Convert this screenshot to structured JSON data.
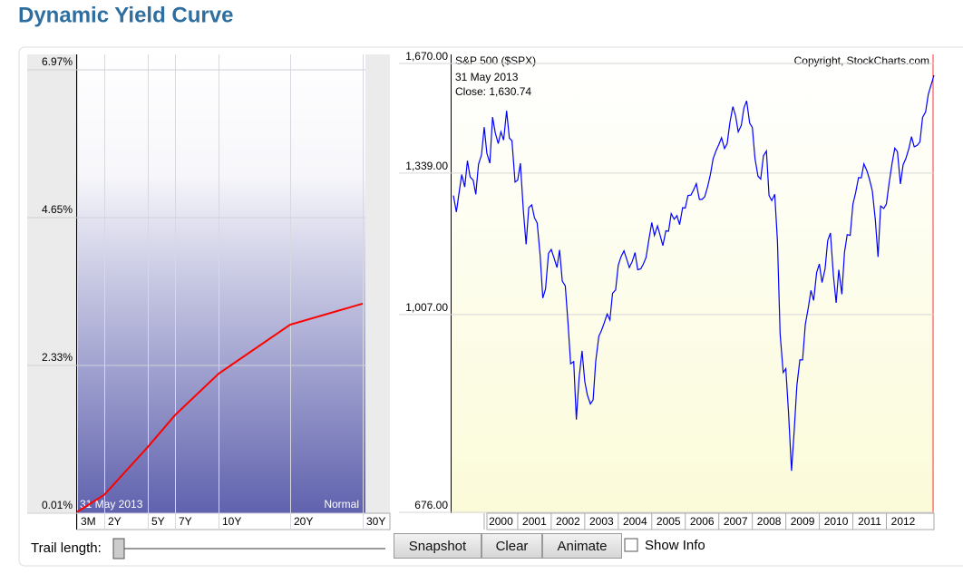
{
  "header": {
    "title": "Dynamic Yield Curve"
  },
  "chart_data": [
    {
      "type": "line",
      "categories": [
        "3M",
        "2Y",
        "5Y",
        "7Y",
        "10Y",
        "20Y",
        "30Y"
      ],
      "values": [
        0.03,
        0.3,
        1.05,
        1.55,
        2.2,
        2.97,
        3.3
      ],
      "color": "#ff0000",
      "ylim": [
        0.01,
        6.97
      ],
      "yticks": [
        {
          "value": 0.01,
          "label": "0.01%"
        },
        {
          "value": 2.33,
          "label": "2.33%"
        },
        {
          "value": 4.65,
          "label": "4.65%"
        },
        {
          "value": 6.97,
          "label": "6.97%"
        }
      ],
      "annotations": [
        "31 May 2013",
        "Normal"
      ],
      "grid": true
    },
    {
      "type": "line",
      "title": "S&P 500 ($SPX)",
      "subtitle": "31 May 2013",
      "annotations": [
        "Close: 1,630.74",
        "Copyright, StockCharts.com"
      ],
      "x": [
        1999.08,
        1999.17,
        1999.25,
        1999.33,
        1999.42,
        1999.5,
        1999.58,
        1999.67,
        1999.75,
        1999.83,
        1999.92,
        2000,
        2000.08,
        2000.17,
        2000.25,
        2000.33,
        2000.42,
        2000.5,
        2000.58,
        2000.67,
        2000.75,
        2000.83,
        2000.92,
        2001,
        2001.08,
        2001.17,
        2001.25,
        2001.33,
        2001.42,
        2001.5,
        2001.58,
        2001.67,
        2001.75,
        2001.83,
        2001.92,
        2002,
        2002.08,
        2002.17,
        2002.25,
        2002.33,
        2002.42,
        2002.5,
        2002.58,
        2002.67,
        2002.75,
        2002.83,
        2002.92,
        2003,
        2003.08,
        2003.17,
        2003.25,
        2003.33,
        2003.42,
        2003.5,
        2003.58,
        2003.67,
        2003.75,
        2003.83,
        2003.92,
        2004,
        2004.08,
        2004.17,
        2004.25,
        2004.33,
        2004.42,
        2004.5,
        2004.58,
        2004.67,
        2004.75,
        2004.83,
        2004.92,
        2005,
        2005.08,
        2005.17,
        2005.25,
        2005.33,
        2005.42,
        2005.5,
        2005.58,
        2005.67,
        2005.75,
        2005.83,
        2005.92,
        2006,
        2006.08,
        2006.17,
        2006.25,
        2006.33,
        2006.42,
        2006.5,
        2006.58,
        2006.67,
        2006.75,
        2006.83,
        2006.92,
        2007,
        2007.08,
        2007.17,
        2007.25,
        2007.33,
        2007.42,
        2007.5,
        2007.58,
        2007.67,
        2007.75,
        2007.83,
        2007.92,
        2008,
        2008.08,
        2008.17,
        2008.25,
        2008.33,
        2008.42,
        2008.5,
        2008.58,
        2008.67,
        2008.75,
        2008.83,
        2008.92,
        2009,
        2009.08,
        2009.17,
        2009.25,
        2009.33,
        2009.42,
        2009.5,
        2009.58,
        2009.67,
        2009.75,
        2009.83,
        2009.92,
        2010,
        2010.08,
        2010.17,
        2010.25,
        2010.33,
        2010.42,
        2010.5,
        2010.58,
        2010.67,
        2010.75,
        2010.83,
        2010.92,
        2011,
        2011.08,
        2011.17,
        2011.25,
        2011.33,
        2011.42,
        2011.5,
        2011.58,
        2011.67,
        2011.75,
        2011.83,
        2011.92,
        2012,
        2012.08,
        2012.17,
        2012.25,
        2012.33,
        2012.42,
        2012.5,
        2012.58,
        2012.67,
        2012.75,
        2012.83,
        2012.92,
        2013,
        2013.08,
        2013.17,
        2013.25,
        2013.33,
        2013.42
      ],
      "values": [
        1280,
        1238,
        1286,
        1335,
        1302,
        1373,
        1329,
        1320,
        1283,
        1363,
        1389,
        1469,
        1394,
        1366,
        1499,
        1452,
        1421,
        1455,
        1431,
        1518,
        1437,
        1429,
        1315,
        1320,
        1366,
        1240,
        1160,
        1249,
        1256,
        1224,
        1211,
        1134,
        1041,
        1060,
        1139,
        1148,
        1130,
        1107,
        1147,
        1077,
        1067,
        990,
        912,
        916,
        815,
        886,
        936,
        880,
        856,
        841,
        848,
        917,
        964,
        975,
        990,
        1008,
        996,
        1051,
        1058,
        1112,
        1131,
        1145,
        1126,
        1107,
        1121,
        1141,
        1102,
        1104,
        1115,
        1130,
        1174,
        1212,
        1181,
        1204,
        1181,
        1157,
        1192,
        1191,
        1234,
        1220,
        1229,
        1207,
        1249,
        1248,
        1280,
        1281,
        1295,
        1311,
        1270,
        1270,
        1277,
        1304,
        1336,
        1378,
        1401,
        1418,
        1438,
        1407,
        1421,
        1482,
        1531,
        1503,
        1455,
        1474,
        1527,
        1549,
        1481,
        1468,
        1379,
        1331,
        1323,
        1386,
        1400,
        1280,
        1267,
        1283,
        1166,
        969,
        896,
        903,
        826,
        735,
        798,
        873,
        919,
        919,
        987,
        1021,
        1057,
        1036,
        1096,
        1115,
        1074,
        1104,
        1169,
        1187,
        1089,
        1031,
        1102,
        1049,
        1141,
        1183,
        1181,
        1258,
        1286,
        1327,
        1326,
        1364,
        1345,
        1321,
        1292,
        1219,
        1131,
        1253,
        1247,
        1258,
        1312,
        1366,
        1408,
        1398,
        1310,
        1362,
        1379,
        1407,
        1441,
        1412,
        1416,
        1426,
        1498,
        1515,
        1569,
        1598,
        1630.74
      ],
      "color": "#0000ff",
      "log_scale": true,
      "xlim": [
        1999,
        2013.42
      ],
      "xticks": [
        2000,
        2001,
        2002,
        2003,
        2004,
        2005,
        2006,
        2007,
        2008,
        2009,
        2010,
        2011,
        2012
      ],
      "ylim": [
        676,
        1670
      ],
      "yticks": [
        {
          "value": 676,
          "label": "676.00"
        },
        {
          "value": 1007,
          "label": "1,007.00"
        },
        {
          "value": 1339,
          "label": "1,339.00"
        },
        {
          "value": 1670,
          "label": "1,670.00"
        }
      ],
      "grid": true
    }
  ],
  "controls": {
    "trail_label": "Trail length:",
    "buttons": [
      "Snapshot",
      "Clear",
      "Animate"
    ],
    "checkbox": "Show Info"
  }
}
